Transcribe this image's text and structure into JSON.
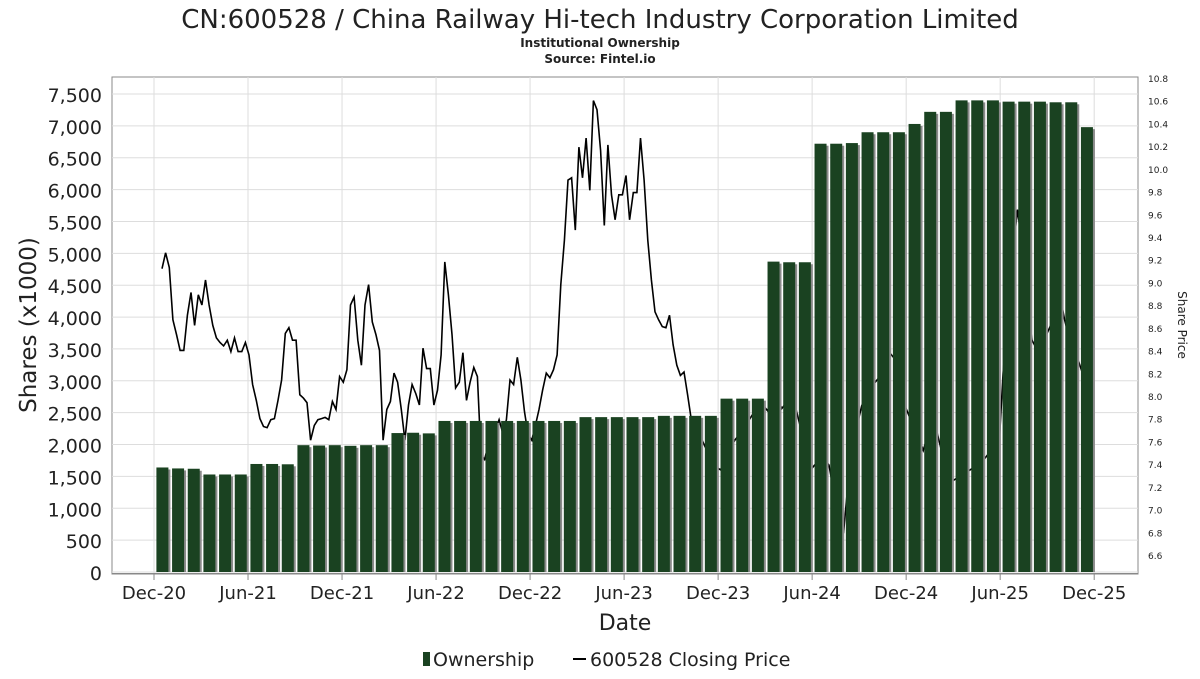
{
  "chart_data": {
    "type": "bar+line",
    "title": "CN:600528 / China Railway Hi-tech Industry Corporation Limited",
    "subtitle": "Institutional Ownership",
    "source": "Source: Fintel.io",
    "xlabel": "Date",
    "ylabel": "Shares (x1000)",
    "y2label": "Share Price",
    "x_ticks": [
      "Dec-20",
      "Jun-21",
      "Dec-21",
      "Jun-22",
      "Dec-22",
      "Jun-23",
      "Dec-23",
      "Jun-24",
      "Dec-24",
      "Jun-25",
      "Dec-25"
    ],
    "y_ticks": [
      "0",
      "500",
      "1,000",
      "1,500",
      "2,000",
      "2,500",
      "3,000",
      "3,500",
      "4,000",
      "4,500",
      "5,000",
      "5,500",
      "6,000",
      "6,500",
      "7,000",
      "7,500"
    ],
    "y2_ticks": [
      "6.6",
      "6.8",
      "7.0",
      "7.2",
      "7.4",
      "7.6",
      "7.8",
      "8.0",
      "8.2",
      "8.4",
      "8.6",
      "8.8",
      "9.0",
      "9.2",
      "9.4",
      "9.6",
      "9.8",
      "10.0",
      "10.2",
      "10.4",
      "10.6",
      "10.8"
    ],
    "ylim": [
      0,
      7500
    ],
    "y2lim": [
      6.6,
      10.8
    ],
    "grid": true,
    "legend": {
      "position": "bottom",
      "entries": [
        "Ownership",
        "600528 Closing Price"
      ]
    },
    "ownership": {
      "name": "Ownership",
      "frequency": "monthly",
      "start": "Jan-21",
      "color": "#1a4221",
      "values": [
        1640,
        1625,
        1620,
        1530,
        1530,
        1530,
        1695,
        1695,
        1690,
        1990,
        1985,
        1990,
        1980,
        1990,
        1990,
        2180,
        2185,
        2175,
        2370,
        2370,
        2370,
        2370,
        2370,
        2370,
        2370,
        2370,
        2370,
        2430,
        2430,
        2430,
        2430,
        2430,
        2450,
        2450,
        2450,
        2450,
        2720,
        2720,
        2720,
        4870,
        4860,
        4860,
        6720,
        6720,
        6730,
        6900,
        6900,
        6900,
        7030,
        7220,
        7220,
        7400,
        7400,
        7400,
        7380,
        7380,
        7380,
        7370,
        7370,
        6980
      ]
    },
    "price": {
      "name": "600528 Closing Price",
      "frequency": "weekly",
      "start": "Jan-21",
      "end": "Dec-25",
      "color": "#000000",
      "values": [
        9.13,
        9.27,
        9.14,
        8.68,
        8.55,
        8.41,
        8.41,
        8.72,
        8.92,
        8.63,
        8.9,
        8.81,
        9.03,
        8.81,
        8.63,
        8.52,
        8.48,
        8.45,
        8.5,
        8.4,
        8.52,
        8.4,
        8.4,
        8.48,
        8.37,
        8.11,
        7.97,
        7.81,
        7.74,
        7.73,
        7.8,
        7.81,
        7.97,
        8.15,
        8.56,
        8.61,
        8.5,
        8.5,
        8.02,
        7.99,
        7.95,
        7.62,
        7.75,
        7.8,
        7.81,
        7.82,
        7.8,
        7.96,
        7.89,
        8.18,
        8.13,
        8.24,
        8.81,
        8.88,
        8.5,
        8.28,
        8.81,
        8.99,
        8.66,
        8.55,
        8.41,
        7.62,
        7.89,
        7.96,
        8.21,
        8.13,
        7.89,
        7.62,
        7.93,
        8.11,
        8.03,
        7.93,
        8.43,
        8.25,
        8.25,
        7.93,
        8.06,
        8.37,
        9.19,
        8.9,
        8.55,
        8.08,
        8.13,
        8.39,
        7.97,
        8.13,
        8.26,
        8.18,
        7.49,
        7.45,
        7.58,
        7.67,
        7.71,
        7.8,
        7.68,
        7.8,
        8.15,
        8.11,
        8.35,
        8.15,
        7.87,
        7.67,
        7.62,
        7.75,
        7.89,
        8.06,
        8.21,
        8.17,
        8.24,
        8.37,
        8.99,
        9.38,
        9.91,
        9.93,
        9.47,
        10.2,
        9.93,
        10.28,
        9.82,
        10.61,
        10.53,
        10.17,
        9.51,
        10.22,
        9.78,
        9.56,
        9.78,
        9.78,
        9.95,
        9.56,
        9.8,
        9.8,
        10.28,
        9.91,
        9.38,
        9.03,
        8.75,
        8.68,
        8.62,
        8.61,
        8.72,
        8.46,
        8.28,
        8.19,
        8.22,
        8.02,
        7.8,
        7.73,
        7.74,
        7.62,
        7.55,
        7.45,
        7.4,
        7.38,
        7.36,
        7.4,
        7.48,
        7.56,
        7.62,
        7.66,
        7.72,
        7.75,
        7.8,
        7.85,
        7.88,
        7.9,
        7.92,
        7.88,
        7.95,
        7.93,
        7.96,
        7.9,
        7.94,
        7.92,
        7.9,
        7.88,
        7.75,
        7.6,
        7.42,
        7.36,
        7.4,
        7.42,
        7.46,
        7.44,
        7.4,
        7.22,
        7.1,
        6.92,
        6.8,
        7.15,
        7.45,
        7.62,
        7.78,
        7.92,
        8.0,
        8.06,
        8.1,
        8.14,
        8.18,
        8.3,
        8.4,
        8.38,
        8.34,
        8.3,
        8.1,
        7.92,
        7.84,
        7.76,
        7.7,
        7.62,
        7.53,
        7.64,
        7.76,
        7.8,
        7.66,
        7.53,
        7.4,
        7.27,
        7.26,
        7.28,
        7.27,
        7.3,
        7.34,
        7.36,
        7.38,
        7.42,
        7.44,
        7.46,
        7.5,
        7.54,
        7.58,
        7.62,
        8.2,
        8.6,
        8.95,
        9.35,
        9.65,
        9.4,
        9.12,
        8.75,
        8.5,
        8.44,
        8.41,
        8.48,
        8.55,
        8.62,
        8.72,
        8.8,
        8.85,
        8.68,
        8.55,
        8.45,
        8.38,
        8.3,
        8.2,
        8.06,
        7.97
      ]
    }
  }
}
